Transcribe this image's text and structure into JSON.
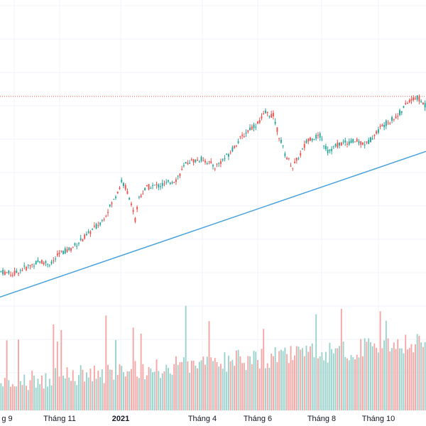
{
  "chart_data": {
    "type": "candlestick",
    "grid": true,
    "x_ticks": [
      "g 9",
      "Tháng 11",
      "2021",
      "Tháng 4",
      "Tháng 6",
      "Tháng 8",
      "Tháng 10"
    ],
    "year_ticks": [
      "2021"
    ],
    "colors": {
      "up": "#26a69a",
      "down": "#ef5350",
      "up_volume": "#9bd3cc",
      "down_volume": "#f5a7a6",
      "trendline": "#4aa3df",
      "price_line": "#ef5350",
      "grid": "#f0f3fa",
      "label": "#131722"
    },
    "price_series": {
      "description": "Price trend nodes (relative scale 0-100)",
      "anchors": [
        [
          0,
          16
        ],
        [
          6,
          15
        ],
        [
          14,
          18
        ],
        [
          20,
          20
        ],
        [
          26,
          19
        ],
        [
          30,
          23
        ],
        [
          36,
          25
        ],
        [
          44,
          30
        ],
        [
          52,
          36
        ],
        [
          58,
          44
        ],
        [
          62,
          51
        ],
        [
          64,
          49
        ],
        [
          67,
          43
        ],
        [
          69,
          36
        ],
        [
          71,
          45
        ],
        [
          75,
          49
        ],
        [
          84,
          50
        ],
        [
          90,
          52
        ],
        [
          96,
          59
        ],
        [
          104,
          60
        ],
        [
          110,
          57
        ],
        [
          116,
          61
        ],
        [
          122,
          67
        ],
        [
          128,
          72
        ],
        [
          132,
          74
        ],
        [
          136,
          78
        ],
        [
          140,
          77
        ],
        [
          143,
          69
        ],
        [
          146,
          62
        ],
        [
          150,
          57
        ],
        [
          154,
          62
        ],
        [
          158,
          68
        ],
        [
          164,
          69
        ],
        [
          168,
          63
        ],
        [
          174,
          66
        ],
        [
          182,
          67
        ],
        [
          188,
          66
        ],
        [
          196,
          73
        ],
        [
          204,
          77
        ],
        [
          210,
          83
        ],
        [
          214,
          84
        ],
        [
          218,
          81
        ]
      ],
      "total_bars": 219,
      "reference_price_level": 84.5
    },
    "trendline": {
      "start": [
        0,
        6
      ],
      "end": [
        218,
        63
      ]
    }
  }
}
